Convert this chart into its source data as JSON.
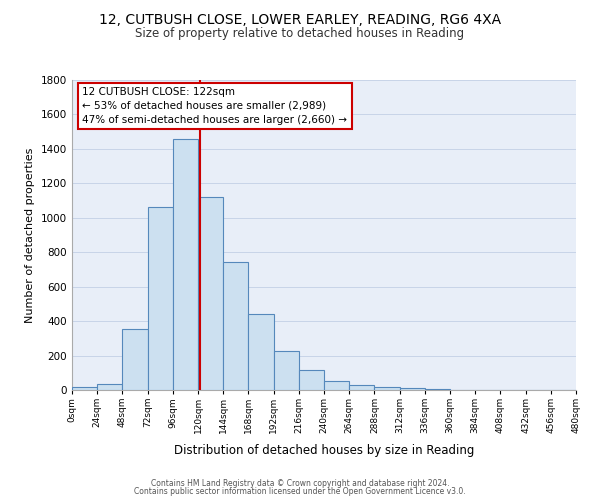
{
  "title_line1": "12, CUTBUSH CLOSE, LOWER EARLEY, READING, RG6 4XA",
  "title_line2": "Size of property relative to detached houses in Reading",
  "xlabel": "Distribution of detached houses by size in Reading",
  "ylabel": "Number of detached properties",
  "bin_edges": [
    0,
    24,
    48,
    72,
    96,
    120,
    144,
    168,
    192,
    216,
    240,
    264,
    288,
    312,
    336,
    360,
    384,
    408,
    432,
    456,
    480
  ],
  "bar_heights": [
    15,
    35,
    355,
    1060,
    1460,
    1120,
    745,
    440,
    225,
    115,
    55,
    30,
    20,
    10,
    5,
    2,
    1,
    1,
    1,
    1
  ],
  "bar_color": "#cce0f0",
  "bar_edge_color": "#5588bb",
  "grid_color": "#c8d4e8",
  "vline_x": 122,
  "vline_color": "#cc0000",
  "annotation_title": "12 CUTBUSH CLOSE: 122sqm",
  "annotation_line1": "← 53% of detached houses are smaller (2,989)",
  "annotation_line2": "47% of semi-detached houses are larger (2,660) →",
  "annotation_box_color": "#cc0000",
  "ylim": [
    0,
    1800
  ],
  "yticks": [
    0,
    200,
    400,
    600,
    800,
    1000,
    1200,
    1400,
    1600,
    1800
  ],
  "xtick_labels": [
    "0sqm",
    "24sqm",
    "48sqm",
    "72sqm",
    "96sqm",
    "120sqm",
    "144sqm",
    "168sqm",
    "192sqm",
    "216sqm",
    "240sqm",
    "264sqm",
    "288sqm",
    "312sqm",
    "336sqm",
    "360sqm",
    "384sqm",
    "408sqm",
    "432sqm",
    "456sqm",
    "480sqm"
  ],
  "footer_line1": "Contains HM Land Registry data © Crown copyright and database right 2024.",
  "footer_line2": "Contains public sector information licensed under the Open Government Licence v3.0.",
  "background_color": "#e8eef8",
  "fig_bg": "#ffffff"
}
